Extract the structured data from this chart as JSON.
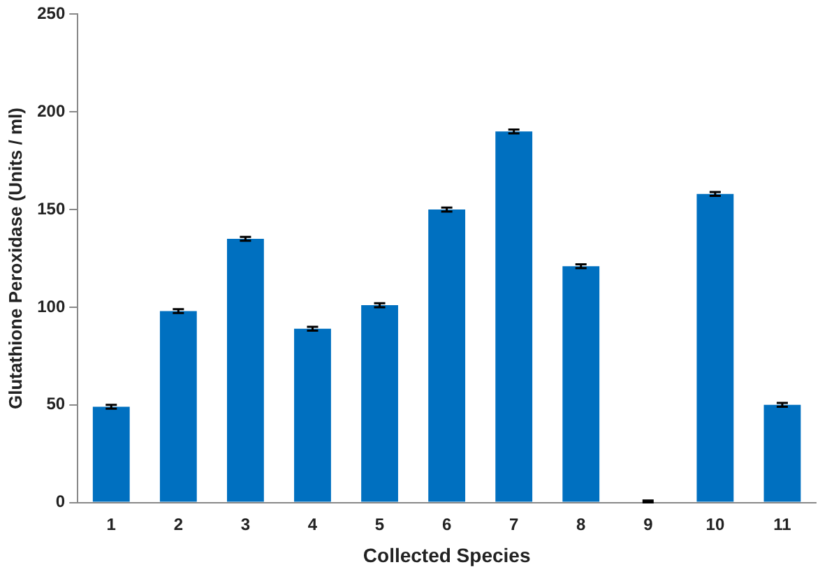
{
  "chart_data": {
    "type": "bar",
    "xlabel": "Collected Species",
    "ylabel": "Glutathione Peroxidase (Units / ml)",
    "categories": [
      "1",
      "2",
      "3",
      "4",
      "5",
      "6",
      "7",
      "8",
      "9",
      "10",
      "11"
    ],
    "values": [
      49,
      98,
      135,
      89,
      101,
      150,
      190,
      121,
      0,
      158,
      50
    ],
    "errors": [
      1,
      1,
      1,
      1,
      1,
      1,
      1,
      1,
      [
        0,
        1
      ],
      1,
      1
    ],
    "color": "#0070c0",
    "ylim": [
      0,
      250
    ],
    "yticks": [
      0,
      50,
      100,
      150,
      200,
      250
    ],
    "grid": false,
    "legend": false
  }
}
